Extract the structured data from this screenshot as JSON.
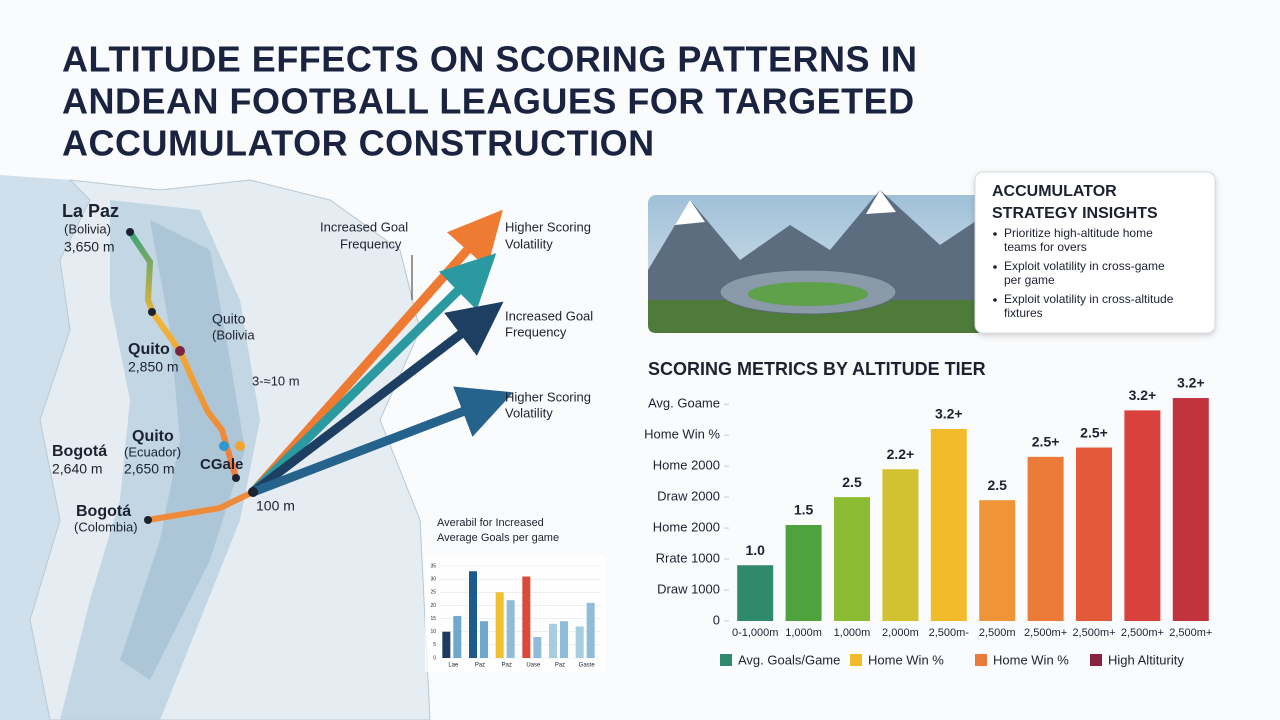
{
  "title_lines": [
    "ALTITUDE EFFECTS ON SCORING PATTERNS IN",
    "ANDEAN FOOTBALL LEAGUES FOR TARGETED",
    "ACCUMULATOR CONSTRUCTION"
  ],
  "map": {
    "labels": [
      "La Paz",
      "(Bolivia)",
      "3,650 m",
      "Quito",
      "(Bolivia",
      "Quito",
      "2,850 m",
      "3-≈10 m",
      "Quito",
      "(Ecuador)",
      "2,650 m",
      "Bogotá",
      "2,640 m",
      "CGale",
      "100 m",
      "Bogotá",
      "(Colombia)"
    ],
    "arrow_labels": [
      "Increased Goal",
      "Frequency",
      "Higher Scoring",
      "Volatility",
      "Increased Goal",
      "Frequency",
      "Higher Scoring",
      "Volatility"
    ]
  },
  "insights": {
    "title_lines": [
      "ACCUMULATOR",
      "STRATEGY INSIGHTS"
    ],
    "bullets": [
      [
        "Prioritize high-altitude home",
        "teams for overs"
      ],
      [
        "Exploit volatility in cross-game",
        "per game"
      ],
      [
        "Exploit volatility in cross-altitude",
        "fixtures"
      ]
    ]
  },
  "chart_data": [
    {
      "type": "bar",
      "title": "SCORING METRICS BY ALTITUDE TIER",
      "categories": [
        "0-1,000m",
        "1,000m",
        "1,000m",
        "2,000m",
        "2,500m-",
        "2,500m",
        "2,500m+",
        "2,500m+",
        "2,500m+",
        "2,500m+"
      ],
      "values": [
        1.8,
        3.1,
        4.0,
        4.9,
        6.2,
        3.9,
        5.3,
        5.6,
        6.8,
        7.2
      ],
      "bar_labels": [
        "1.0",
        "1.5",
        "2.5",
        "2.2+",
        "3.2+",
        "2.5",
        "2.5+",
        "2.5+",
        "3.2+",
        "3.2+"
      ],
      "colors": [
        "#2f8a6c",
        "#4fa33e",
        "#8cbc34",
        "#d2c231",
        "#f2bb2c",
        "#ef9538",
        "#ec7a38",
        "#e4593a",
        "#d9413c",
        "#c1343e"
      ],
      "ylim": [
        0,
        7.2
      ],
      "yticks": [
        0,
        {
          "value": 1,
          "label": "Draw 1000"
        },
        {
          "value": 2,
          "label": "Rrate 1000"
        },
        {
          "value": 3,
          "label": "Home 2000"
        },
        {
          "value": 4,
          "label": "Draw  2000"
        },
        {
          "value": 5,
          "label": "Home 2000"
        },
        {
          "value": 6,
          "label": "Home Win %"
        },
        {
          "value": 7,
          "label": "Avg. Goame"
        }
      ],
      "legend": [
        {
          "name": "Avg. Goals/Game",
          "color": "#2f8a6c"
        },
        {
          "name": "Home Win %",
          "color": "#f2bb2c"
        },
        {
          "name": "Home Win %",
          "color": "#ec7a38"
        },
        {
          "name": "High Altiturity",
          "color": "#8a2440"
        }
      ]
    },
    {
      "type": "bar",
      "title_lines": [
        "Averabil for Increased",
        "Average Goals per game"
      ],
      "categories": [
        "Lae",
        "Paz",
        "Paz",
        "Uase",
        "Paz",
        "Gaste"
      ],
      "series": [
        {
          "colors": [
            "#1e3a5f",
            "#1e5a8a",
            "#f0c030",
            "#d94a3a",
            "#a8cce0",
            "#a8cce0"
          ],
          "values": [
            10,
            33,
            25,
            31,
            13,
            12
          ]
        },
        {
          "colors": [
            "#6fa8cc",
            "#6fa8cc",
            "#8fbcd8",
            "#8fbcd8",
            "#8fbcd8",
            "#8fbcd8"
          ],
          "values": [
            16,
            14,
            22,
            8,
            14,
            21
          ]
        }
      ],
      "ylim": [
        0,
        40
      ],
      "yticks": [
        0,
        5,
        10,
        15,
        20,
        25,
        30,
        35
      ]
    }
  ]
}
